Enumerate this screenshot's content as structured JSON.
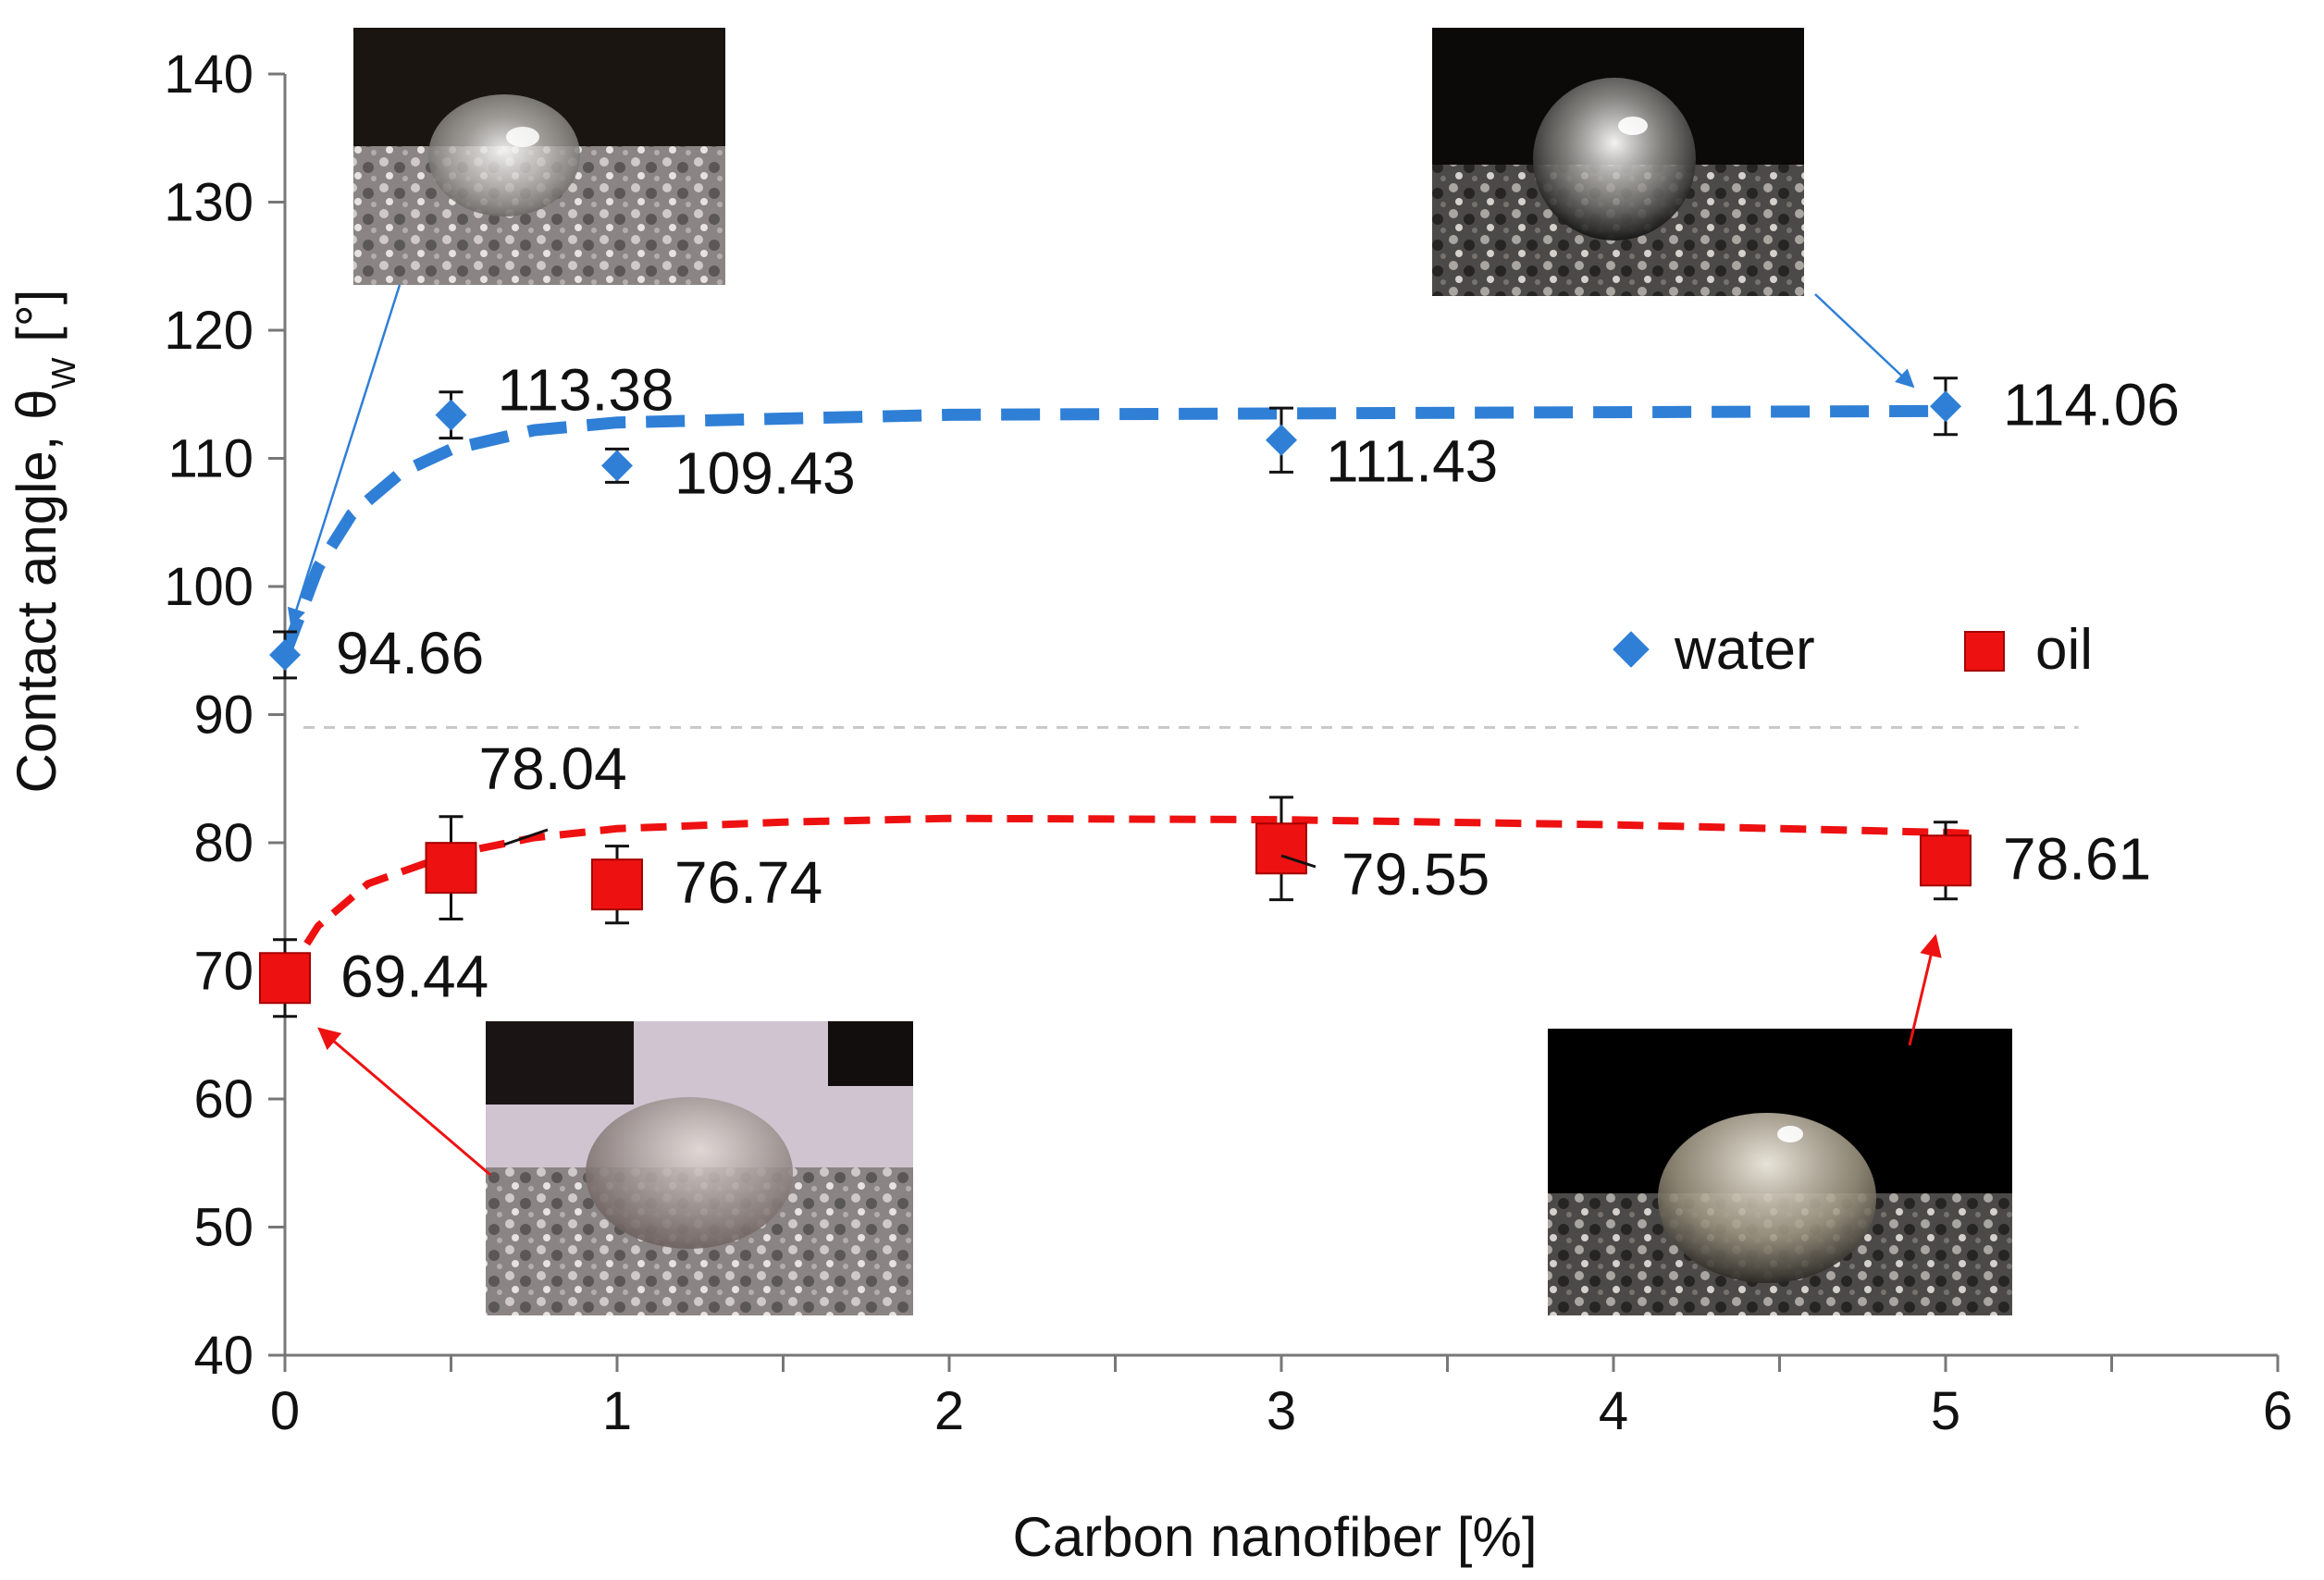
{
  "chart_data": {
    "type": "scatter",
    "title": "",
    "xlabel": "Carbon nanofiber [%]",
    "ylabel": "Contact angle, θ",
    "ylabel_subscript": "W",
    "ylabel_unit": " [°]",
    "xlim": [
      0,
      6
    ],
    "ylim": [
      40,
      140
    ],
    "x_ticks": [
      0,
      1,
      2,
      3,
      4,
      5,
      6
    ],
    "y_ticks": [
      40,
      50,
      60,
      70,
      80,
      90,
      100,
      110,
      120,
      130,
      140
    ],
    "grid": false,
    "reference_line_y": 89,
    "legend_position": "center-right",
    "series": [
      {
        "name": "water",
        "marker": "diamond",
        "color": "#2f7fd6",
        "points": [
          {
            "x": 0,
            "y": 94.66,
            "err": 1.8,
            "label": "94.66"
          },
          {
            "x": 0.5,
            "y": 113.38,
            "err": 1.8,
            "label": "113.38"
          },
          {
            "x": 1,
            "y": 109.43,
            "err": 1.3,
            "label": "109.43"
          },
          {
            "x": 3,
            "y": 111.43,
            "err": 2.5,
            "label": "111.43"
          },
          {
            "x": 5,
            "y": 114.06,
            "err": 2.2,
            "label": "114.06"
          }
        ],
        "trend": [
          [
            0,
            94.66
          ],
          [
            0.1,
            101.5
          ],
          [
            0.2,
            105.6
          ],
          [
            0.35,
            108.9
          ],
          [
            0.5,
            110.7
          ],
          [
            0.75,
            112.2
          ],
          [
            1,
            112.8
          ],
          [
            2,
            113.4
          ],
          [
            3,
            113.5
          ],
          [
            4,
            113.6
          ],
          [
            5,
            113.7
          ]
        ]
      },
      {
        "name": "oil",
        "marker": "square",
        "color": "#ee1111",
        "points": [
          {
            "x": 0,
            "y": 69.44,
            "err": 3.0,
            "label": "69.44"
          },
          {
            "x": 0.5,
            "y": 78.04,
            "err": 4.0,
            "label": "78.04"
          },
          {
            "x": 1,
            "y": 76.74,
            "err": 3.0,
            "label": "76.74"
          },
          {
            "x": 3,
            "y": 79.55,
            "err": 4.0,
            "label": "79.55"
          },
          {
            "x": 5,
            "y": 78.61,
            "err": 3.0,
            "label": "78.61"
          }
        ],
        "trend": [
          [
            0,
            69.44
          ],
          [
            0.1,
            73.5
          ],
          [
            0.25,
            76.8
          ],
          [
            0.5,
            79.1
          ],
          [
            0.75,
            80.4
          ],
          [
            1,
            81.1
          ],
          [
            1.5,
            81.6
          ],
          [
            2,
            81.9
          ],
          [
            3,
            81.8
          ],
          [
            4,
            81.4
          ],
          [
            5,
            80.8
          ],
          [
            5.1,
            80.7
          ]
        ]
      }
    ]
  }
}
